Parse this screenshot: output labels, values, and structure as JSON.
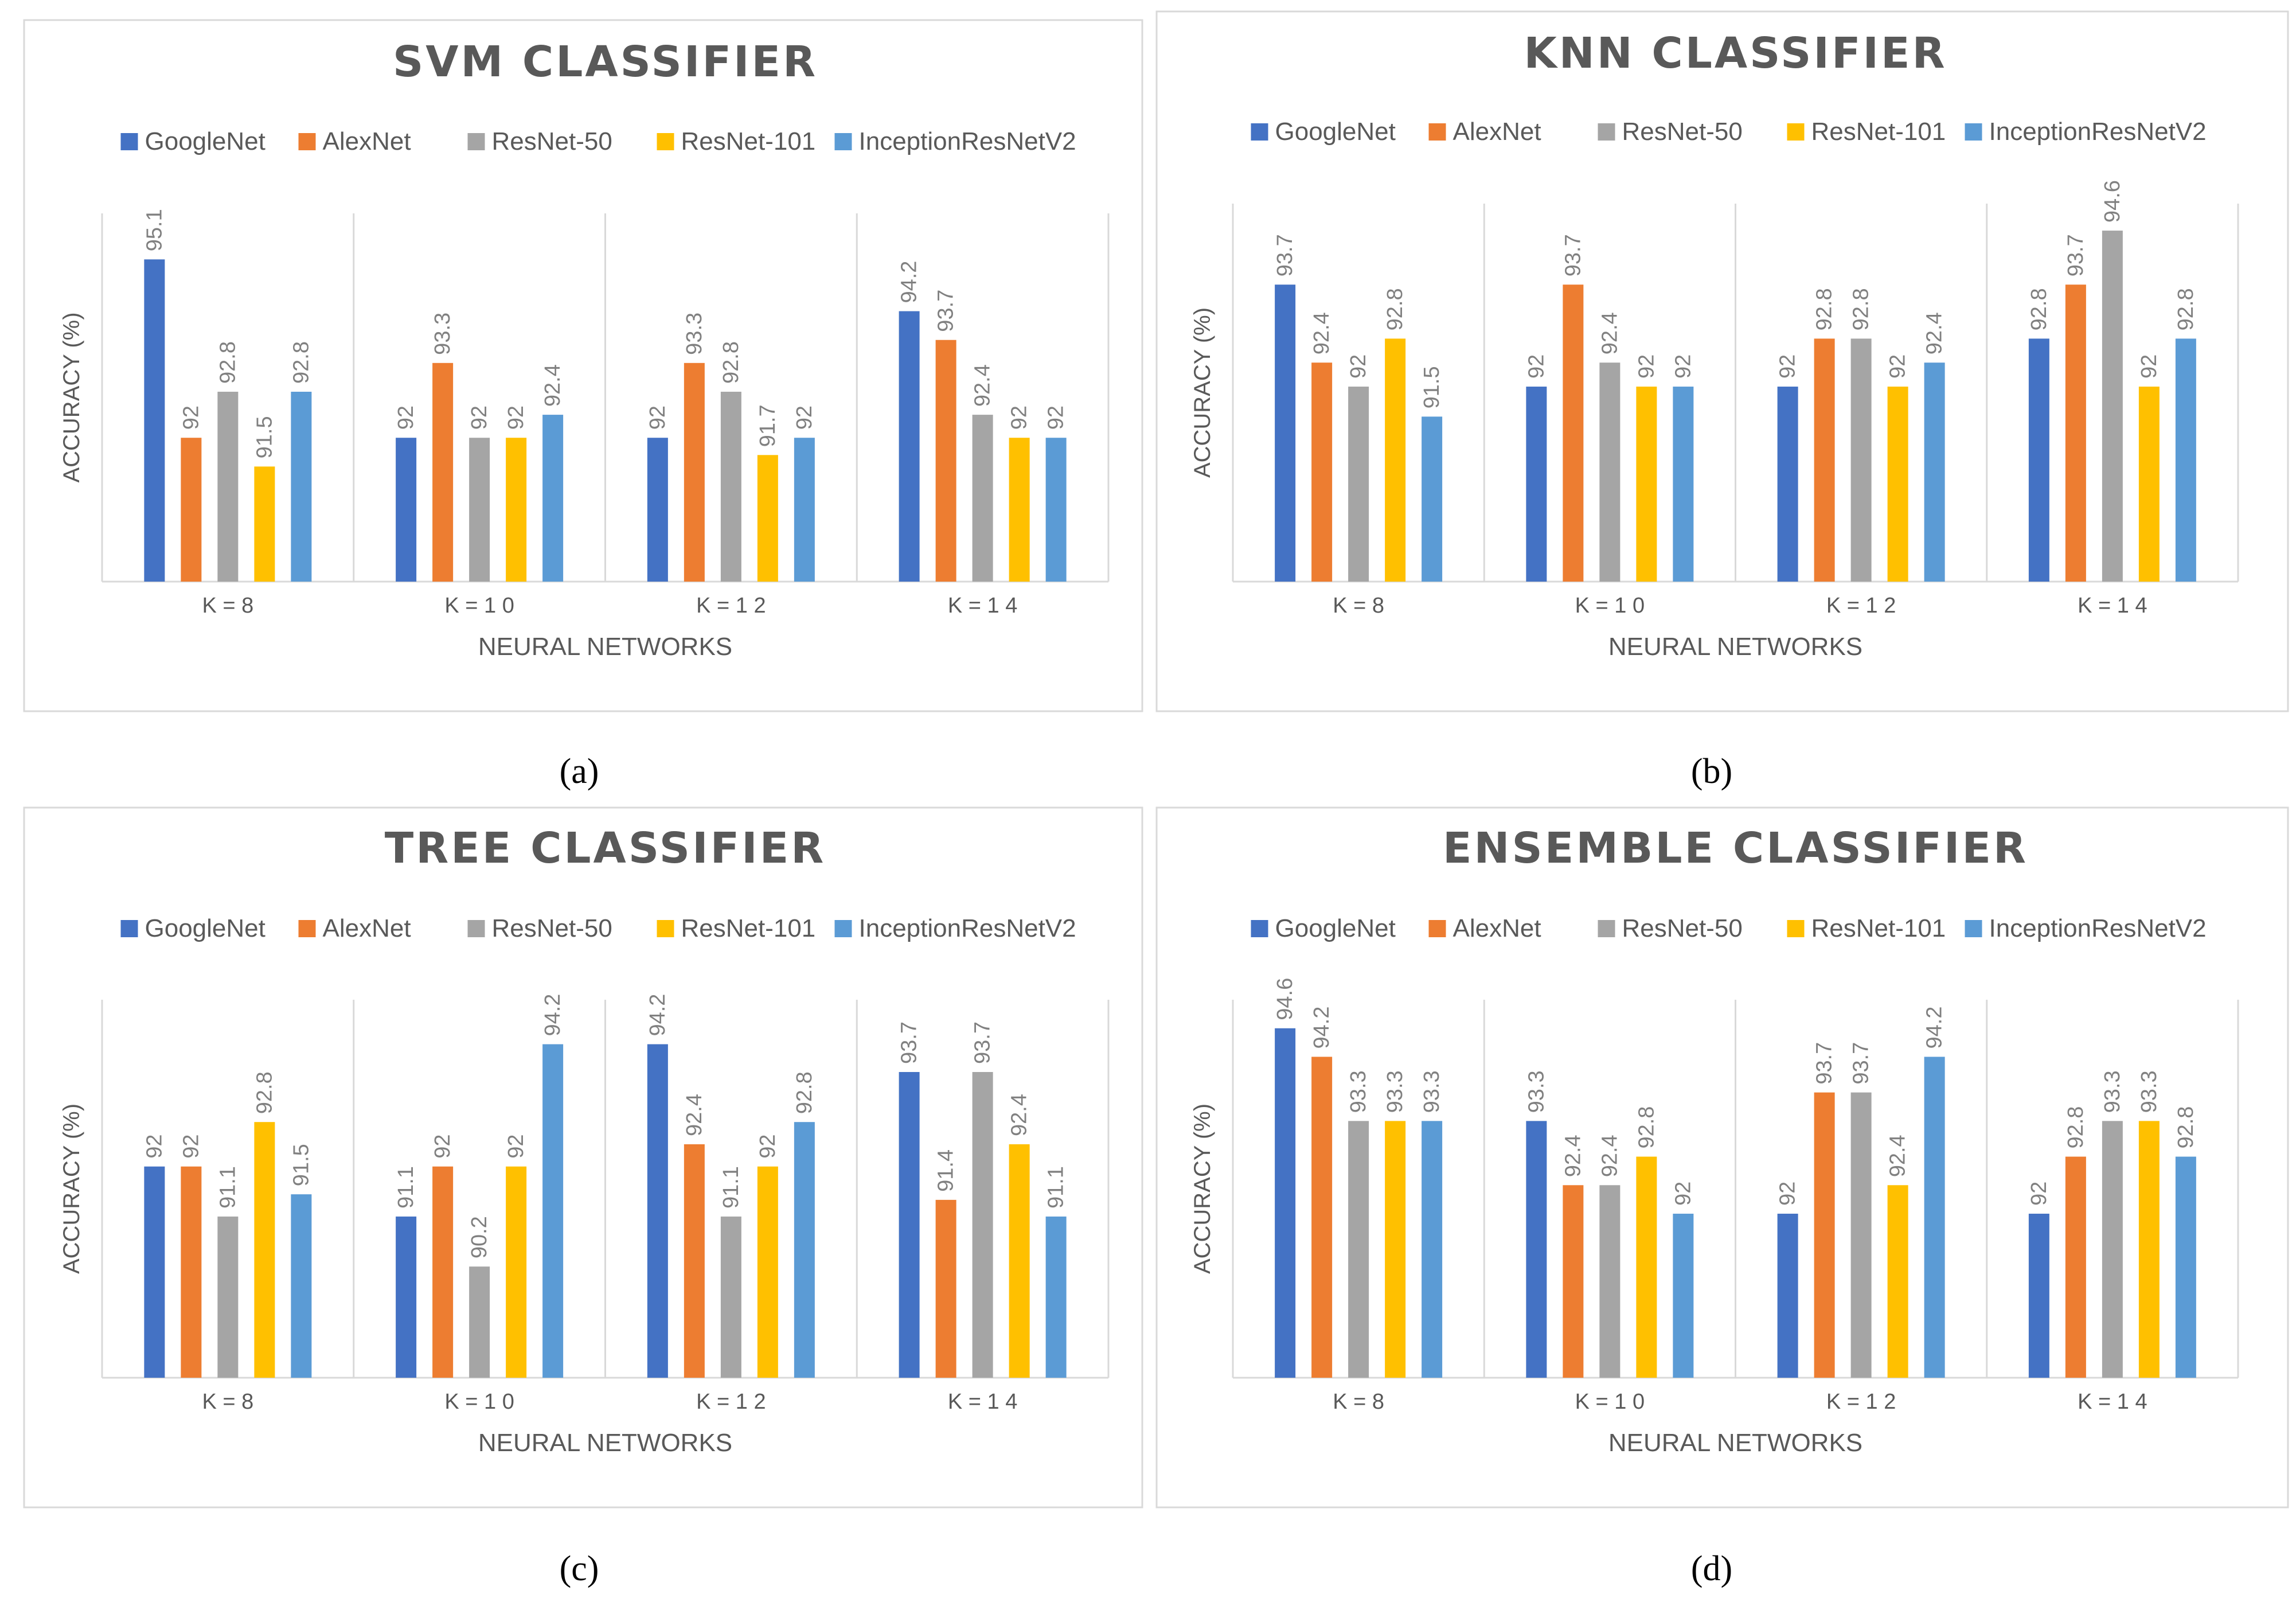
{
  "figure": {
    "panel_labels": [
      "(a)",
      "(b)",
      "(c)",
      "(d)"
    ]
  },
  "chart_data": [
    {
      "type": "bar",
      "title": "SVM CLASSIFIER",
      "xlabel": "NEURAL NETWORKS",
      "ylabel": "ACCURACY (%)",
      "ylim": [
        89.5,
        95.9
      ],
      "grid": false,
      "legend_position": "top",
      "categories": [
        "K = 8",
        "K = 1 0",
        "K = 1 2",
        "K = 1 4"
      ],
      "series": [
        {
          "name": "GoogleNet",
          "color": "#4472C4",
          "values": [
            95.1,
            92,
            92,
            94.2
          ]
        },
        {
          "name": "AlexNet",
          "color": "#ED7D31",
          "values": [
            92,
            93.3,
            93.3,
            93.7
          ]
        },
        {
          "name": "ResNet-50",
          "color": "#A5A5A5",
          "values": [
            92.8,
            92,
            92.8,
            92.4
          ]
        },
        {
          "name": "ResNet-101",
          "color": "#FFC000",
          "values": [
            91.5,
            92,
            91.7,
            92
          ]
        },
        {
          "name": "InceptionResNetV2",
          "color": "#5B9BD5",
          "values": [
            92.8,
            92.4,
            92,
            92
          ]
        }
      ]
    },
    {
      "type": "bar",
      "title": "KNN CLASSIFIER",
      "xlabel": "NEURAL NETWORKS",
      "ylabel": "ACCURACY (%)",
      "ylim": [
        88.75,
        95.05
      ],
      "grid": false,
      "legend_position": "top",
      "categories": [
        "K = 8",
        "K = 1 0",
        "K = 1 2",
        "K = 1 4"
      ],
      "series": [
        {
          "name": "GoogleNet",
          "color": "#4472C4",
          "values": [
            93.7,
            92,
            92,
            92.8
          ]
        },
        {
          "name": "AlexNet",
          "color": "#ED7D31",
          "values": [
            92.4,
            93.7,
            92.8,
            93.7
          ]
        },
        {
          "name": "ResNet-50",
          "color": "#A5A5A5",
          "values": [
            92,
            92.4,
            92.8,
            94.6
          ]
        },
        {
          "name": "ResNet-101",
          "color": "#FFC000",
          "values": [
            92.8,
            92,
            92,
            92
          ]
        },
        {
          "name": "InceptionResNetV2",
          "color": "#5B9BD5",
          "values": [
            91.5,
            92,
            92.4,
            92.8
          ]
        }
      ]
    },
    {
      "type": "bar",
      "title": "TREE CLASSIFIER",
      "xlabel": "NEURAL NETWORKS",
      "ylabel": "ACCURACY (%)",
      "ylim": [
        88.2,
        95.0
      ],
      "grid": false,
      "legend_position": "top",
      "categories": [
        "K = 8",
        "K = 1 0",
        "K = 1 2",
        "K = 1 4"
      ],
      "series": [
        {
          "name": "GoogleNet",
          "color": "#4472C4",
          "values": [
            92,
            91.1,
            94.2,
            93.7
          ]
        },
        {
          "name": "AlexNet",
          "color": "#ED7D31",
          "values": [
            92,
            92,
            92.4,
            91.4
          ]
        },
        {
          "name": "ResNet-50",
          "color": "#A5A5A5",
          "values": [
            91.1,
            90.2,
            91.1,
            93.7
          ]
        },
        {
          "name": "ResNet-101",
          "color": "#FFC000",
          "values": [
            92.8,
            92,
            92,
            92.4
          ]
        },
        {
          "name": "InceptionResNetV2",
          "color": "#5B9BD5",
          "values": [
            91.5,
            94.2,
            92.8,
            91.1
          ]
        }
      ]
    },
    {
      "type": "bar",
      "title": "ENSEMBLE CLASSIFIER",
      "xlabel": "NEURAL NETWORKS",
      "ylabel": "ACCURACY (%)",
      "ylim": [
        89.7,
        95.0
      ],
      "grid": false,
      "legend_position": "top",
      "categories": [
        "K = 8",
        "K = 1 0",
        "K = 1 2",
        "K = 1 4"
      ],
      "series": [
        {
          "name": "GoogleNet",
          "color": "#4472C4",
          "values": [
            94.6,
            93.3,
            92,
            92
          ]
        },
        {
          "name": "AlexNet",
          "color": "#ED7D31",
          "values": [
            94.2,
            92.4,
            93.7,
            92.8
          ]
        },
        {
          "name": "ResNet-50",
          "color": "#A5A5A5",
          "values": [
            93.3,
            92.4,
            93.7,
            93.3
          ]
        },
        {
          "name": "ResNet-101",
          "color": "#FFC000",
          "values": [
            93.3,
            92.8,
            92.4,
            93.3
          ]
        },
        {
          "name": "InceptionResNetV2",
          "color": "#5B9BD5",
          "values": [
            93.3,
            92,
            94.2,
            92.8
          ]
        }
      ]
    }
  ]
}
